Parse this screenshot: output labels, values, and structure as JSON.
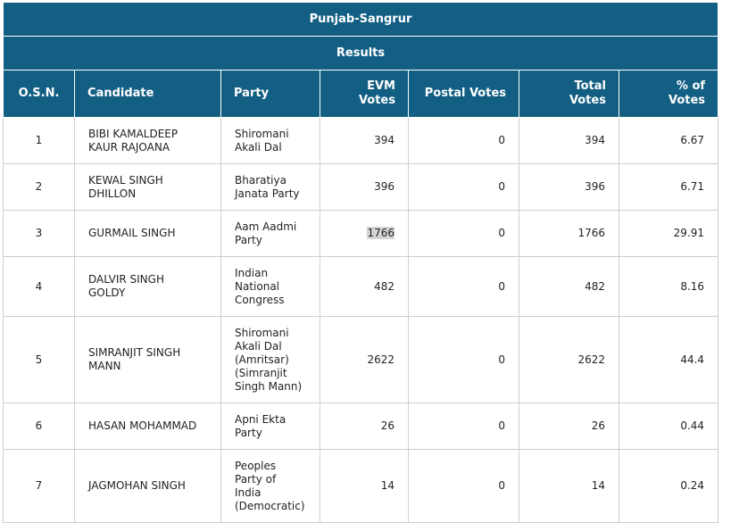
{
  "constituency": "Punjab-Sangrur",
  "section": "Results",
  "columns": {
    "osn": "O.S.N.",
    "candidate": "Candidate",
    "party": "Party",
    "evm_line1": "EVM",
    "evm_line2": "Votes",
    "postal": "Postal Votes",
    "total_line1": "Total",
    "total_line2": "Votes",
    "pct_line1": "% of",
    "pct_line2": "Votes"
  },
  "rows": [
    {
      "osn": "1",
      "cand1": "BIBI KAMALDEEP",
      "cand2": "KAUR RAJOANA",
      "p1": "Shiromani",
      "p2": "Akali Dal",
      "evm": "394",
      "postal": "0",
      "total": "394",
      "pct": "6.67"
    },
    {
      "osn": "2",
      "cand1": "KEWAL SINGH",
      "cand2": "DHILLON",
      "p1": "Bharatiya",
      "p2": "Janata Party",
      "evm": "396",
      "postal": "0",
      "total": "396",
      "pct": "6.71"
    },
    {
      "osn": "3",
      "cand1": "GURMAIL SINGH",
      "p1": "Aam Aadmi",
      "p2": "Party",
      "evm": "1766",
      "postal": "0",
      "total": "1766",
      "pct": "29.91"
    },
    {
      "osn": "4",
      "cand1": "DALVIR SINGH",
      "cand2": "GOLDY",
      "p1": "Indian",
      "p2": "National",
      "p3": "Congress",
      "evm": "482",
      "postal": "0",
      "total": "482",
      "pct": "8.16"
    },
    {
      "osn": "5",
      "cand1": "SIMRANJIT SINGH",
      "cand2": "MANN",
      "p1": "Shiromani",
      "p2": "Akali Dal",
      "p3": "(Amritsar)",
      "p4": "(Simranjit",
      "p5": "Singh Mann)",
      "evm": "2622",
      "postal": "0",
      "total": "2622",
      "pct": "44.4"
    },
    {
      "osn": "6",
      "cand1": "HASAN MOHAMMAD",
      "p1": "Apni Ekta",
      "p2": "Party",
      "evm": "26",
      "postal": "0",
      "total": "26",
      "pct": "0.44"
    },
    {
      "osn": "7",
      "cand1": "JAGMOHAN SINGH",
      "p1": "Peoples",
      "p2": "Party of",
      "p3": "India",
      "p4": "(Democratic)",
      "evm": "14",
      "postal": "0",
      "total": "14",
      "pct": "0.24"
    }
  ],
  "highlight_color": "#d5d5d5",
  "header_color": "#135f84"
}
